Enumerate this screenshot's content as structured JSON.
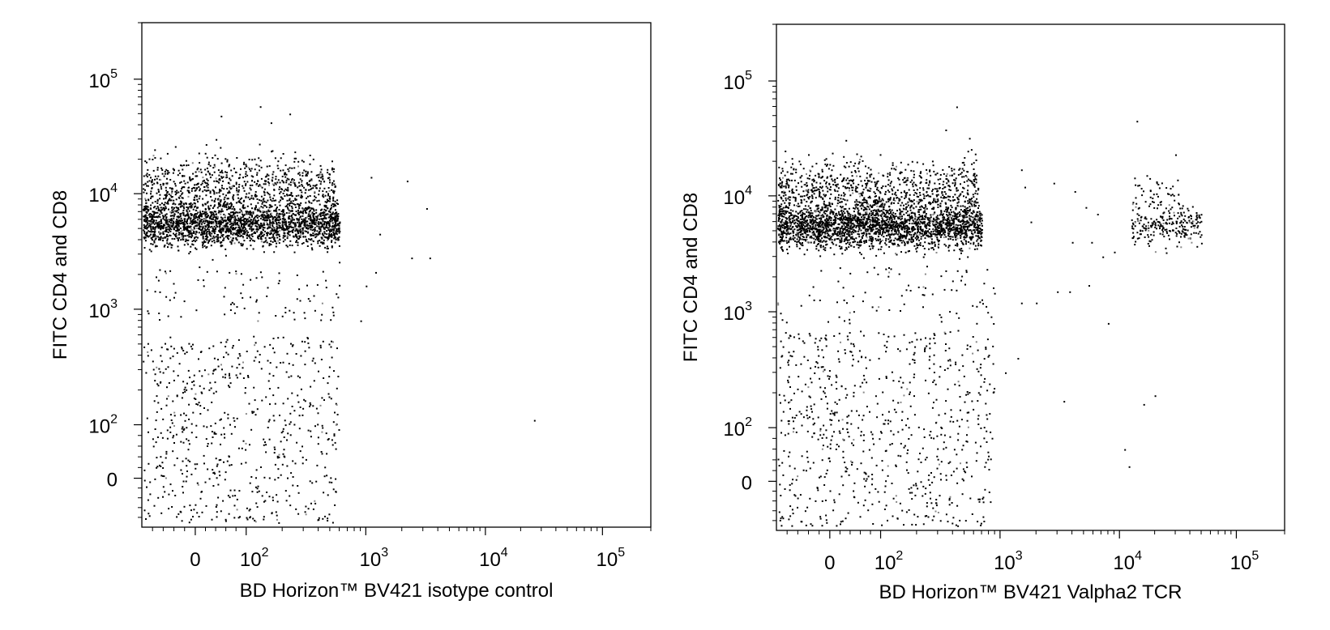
{
  "chart_data": [
    {
      "type": "scatter",
      "xlabel": "BD Horizon™ BV421 isotype control",
      "ylabel": "FITC CD4 and CD8",
      "x_scale": "biexponential",
      "y_scale": "biexponential",
      "xlim": [
        -100,
        200000
      ],
      "ylim": [
        -100,
        200000
      ],
      "x_ticks": [
        {
          "value": 0,
          "label": "0"
        },
        {
          "value": 100,
          "label": "10",
          "sup": "2"
        },
        {
          "value": 1000,
          "label": "10",
          "sup": "3"
        },
        {
          "value": 10000,
          "label": "10",
          "sup": "4"
        },
        {
          "value": 100000,
          "label": "10",
          "sup": "5"
        }
      ],
      "y_ticks": [
        {
          "value": 0,
          "label": "0"
        },
        {
          "value": 100,
          "label": "10",
          "sup": "2"
        },
        {
          "value": 1000,
          "label": "10",
          "sup": "3"
        },
        {
          "value": 10000,
          "label": "10",
          "sup": "4"
        },
        {
          "value": 100000,
          "label": "10",
          "sup": "5"
        }
      ],
      "dot_color": "#000000",
      "populations": [
        {
          "x_range": [
            -100,
            600
          ],
          "y_center": 5500,
          "y_spread_log": 0.09,
          "n": 2200
        },
        {
          "x_range": [
            -100,
            550
          ],
          "y_center": 11000,
          "y_spread_log": 0.14,
          "n": 900
        },
        {
          "x_range": [
            -100,
            600
          ],
          "y_log_range": [
            2.9,
            3.35
          ],
          "n": 90
        },
        {
          "x_range": [
            -100,
            600
          ],
          "y_range": [
            -90,
            600
          ],
          "n": 650
        }
      ],
      "outliers": [
        {
          "x": 1100,
          "y": 14000
        },
        {
          "x": 2200,
          "y": 13000
        },
        {
          "x": 3200,
          "y": 7500
        },
        {
          "x": 1300,
          "y": 4500
        },
        {
          "x": 2400,
          "y": 2800
        },
        {
          "x": 3400,
          "y": 2800
        },
        {
          "x": 1000,
          "y": 1600
        },
        {
          "x": 900,
          "y": 800
        },
        {
          "x": 1200,
          "y": 2100
        },
        {
          "x": 26000,
          "y": 110
        },
        {
          "x": 50,
          "y": 48000
        },
        {
          "x": 130,
          "y": 58000
        },
        {
          "x": 230,
          "y": 50000
        },
        {
          "x": 160,
          "y": 42000
        },
        {
          "x": 40,
          "y": 30000
        }
      ]
    },
    {
      "type": "scatter",
      "xlabel": "BD Horizon™ BV421 Valpha2 TCR",
      "ylabel": "FITC CD4 and CD8",
      "x_scale": "biexponential",
      "y_scale": "biexponential",
      "xlim": [
        -100,
        200000
      ],
      "ylim": [
        -100,
        200000
      ],
      "x_ticks": [
        {
          "value": 0,
          "label": "0"
        },
        {
          "value": 100,
          "label": "10",
          "sup": "2"
        },
        {
          "value": 1000,
          "label": "10",
          "sup": "3"
        },
        {
          "value": 10000,
          "label": "10",
          "sup": "4"
        },
        {
          "value": 100000,
          "label": "10",
          "sup": "5"
        }
      ],
      "y_ticks": [
        {
          "value": 0,
          "label": "0"
        },
        {
          "value": 100,
          "label": "10",
          "sup": "2"
        },
        {
          "value": 1000,
          "label": "10",
          "sup": "3"
        },
        {
          "value": 10000,
          "label": "10",
          "sup": "4"
        },
        {
          "value": 100000,
          "label": "10",
          "sup": "5"
        }
      ],
      "dot_color": "#000000",
      "populations": [
        {
          "x_range": [
            -100,
            700
          ],
          "y_center": 5500,
          "y_spread_log": 0.09,
          "n": 2300
        },
        {
          "x_range": [
            -100,
            650
          ],
          "y_center": 11000,
          "y_spread_log": 0.14,
          "n": 950
        },
        {
          "x_range": [
            -100,
            900
          ],
          "y_log_range": [
            2.9,
            3.4
          ],
          "n": 90
        },
        {
          "x_range": [
            -100,
            900
          ],
          "y_range": [
            -90,
            700
          ],
          "n": 750
        },
        {
          "x_log_range": [
            4.1,
            4.7
          ],
          "y_center": 5500,
          "y_spread_log": 0.08,
          "n": 240
        },
        {
          "x_log_range": [
            4.1,
            4.5
          ],
          "y_center": 10000,
          "y_spread_log": 0.08,
          "n": 50
        }
      ],
      "outliers": [
        {
          "x": 1600,
          "y": 12000
        },
        {
          "x": 2800,
          "y": 13000
        },
        {
          "x": 4200,
          "y": 11000
        },
        {
          "x": 5200,
          "y": 8000
        },
        {
          "x": 6500,
          "y": 7000
        },
        {
          "x": 1800,
          "y": 6000
        },
        {
          "x": 4000,
          "y": 4000
        },
        {
          "x": 5800,
          "y": 4000
        },
        {
          "x": 7200,
          "y": 3000
        },
        {
          "x": 9000,
          "y": 3300
        },
        {
          "x": 3000,
          "y": 1500
        },
        {
          "x": 3800,
          "y": 1500
        },
        {
          "x": 5500,
          "y": 1700
        },
        {
          "x": 1500,
          "y": 1200
        },
        {
          "x": 2000,
          "y": 1200
        },
        {
          "x": 8000,
          "y": 800
        },
        {
          "x": 1100,
          "y": 300
        },
        {
          "x": 1400,
          "y": 400
        },
        {
          "x": 3400,
          "y": 170
        },
        {
          "x": 16000,
          "y": 160
        },
        {
          "x": 20000,
          "y": 190
        },
        {
          "x": 11000,
          "y": 60
        },
        {
          "x": 12000,
          "y": 28
        },
        {
          "x": 14000,
          "y": 45000
        },
        {
          "x": 30000,
          "y": 23000
        },
        {
          "x": 430,
          "y": 60000
        },
        {
          "x": 1500,
          "y": 17000
        }
      ]
    }
  ]
}
